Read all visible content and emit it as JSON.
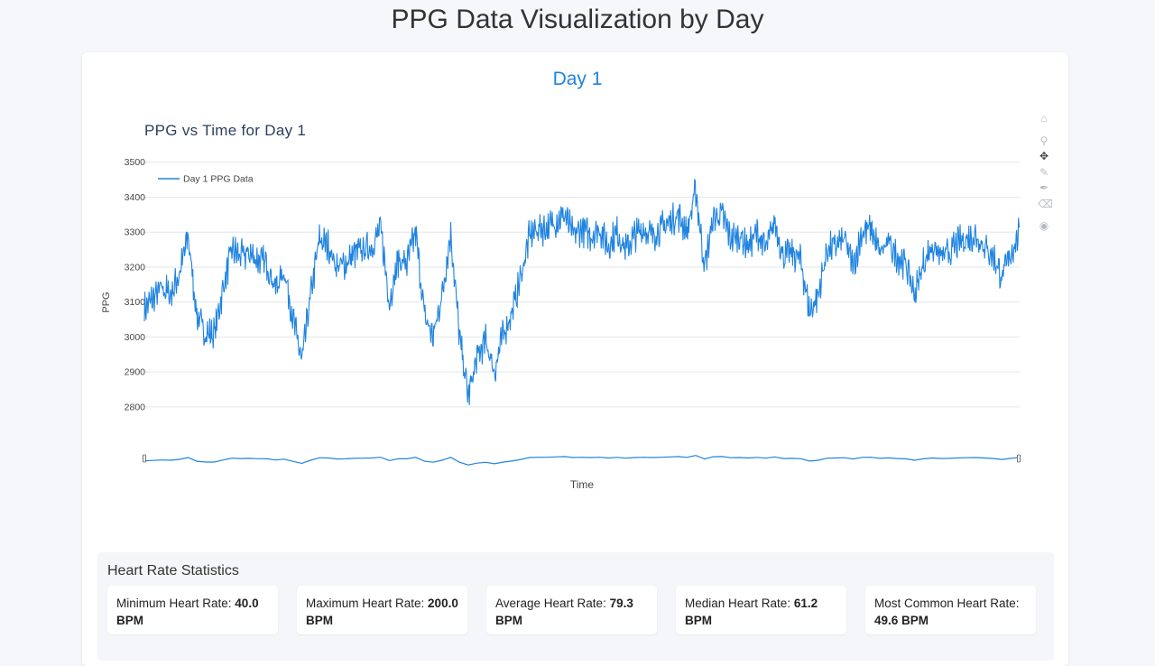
{
  "page": {
    "title": "PPG Data Visualization by Day"
  },
  "day": {
    "title": "Day 1"
  },
  "modebar": {
    "icons": [
      "home-icon",
      "zoom-icon",
      "pan-icon",
      "draw-icon",
      "draw-open-icon",
      "erase-icon",
      "camera-icon"
    ]
  },
  "chart_data": {
    "type": "line",
    "title": "PPG vs Time for Day 1",
    "xlabel": "Time",
    "ylabel": "PPG",
    "ylim": [
      2730,
      3520
    ],
    "yticks": [
      2800,
      2900,
      3000,
      3100,
      3200,
      3300,
      3400,
      3500
    ],
    "grid": true,
    "legend": "top-left",
    "range_slider": true,
    "series": [
      {
        "name": "Day 1 PPG Data",
        "color": "#1f83e0",
        "x": [
          0,
          1,
          2,
          3,
          4,
          5,
          6,
          7,
          8,
          9,
          10,
          11,
          12,
          13,
          14,
          15,
          16,
          17,
          18,
          19,
          20,
          21,
          22,
          23,
          24,
          25,
          26,
          27,
          28,
          29,
          30,
          31,
          32,
          33,
          34,
          35,
          36,
          37,
          38,
          39,
          40,
          41,
          42,
          43,
          44,
          45,
          46,
          47,
          48,
          49,
          50,
          51,
          52,
          53,
          54,
          55,
          56,
          57,
          58,
          59,
          60,
          61,
          62,
          63,
          64,
          65,
          66,
          67,
          68,
          69,
          70,
          71,
          72,
          73,
          74,
          75,
          76,
          77,
          78,
          79,
          80,
          81,
          82,
          83,
          84,
          85,
          86,
          87,
          88,
          89,
          90,
          91,
          92,
          93,
          94,
          95,
          96,
          97,
          98,
          99,
          100
        ],
        "y": [
          3080,
          3110,
          3140,
          3120,
          3180,
          3290,
          3060,
          3010,
          3010,
          3140,
          3250,
          3230,
          3240,
          3220,
          3210,
          3140,
          3190,
          3050,
          2930,
          3120,
          3280,
          3260,
          3200,
          3210,
          3240,
          3250,
          3260,
          3310,
          3100,
          3220,
          3210,
          3300,
          3060,
          3000,
          3120,
          3300,
          3000,
          2830,
          2940,
          2990,
          2900,
          3010,
          3070,
          3170,
          3290,
          3310,
          3310,
          3330,
          3350,
          3290,
          3310,
          3290,
          3310,
          3260,
          3300,
          3250,
          3290,
          3310,
          3290,
          3310,
          3330,
          3350,
          3300,
          3420,
          3200,
          3340,
          3350,
          3280,
          3290,
          3260,
          3300,
          3250,
          3330,
          3230,
          3240,
          3220,
          3070,
          3120,
          3250,
          3260,
          3280,
          3200,
          3300,
          3310,
          3240,
          3270,
          3230,
          3210,
          3120,
          3210,
          3260,
          3230,
          3240,
          3270,
          3280,
          3290,
          3260,
          3230,
          3170,
          3240,
          3300
        ],
        "values_note": ""
      }
    ]
  },
  "stats": {
    "title": "Heart Rate Statistics",
    "items": [
      {
        "label": "Minimum Heart Rate:",
        "value": "40.0 BPM"
      },
      {
        "label": "Maximum Heart Rate:",
        "value": "200.0 BPM"
      },
      {
        "label": "Average Heart Rate:",
        "value": "79.3 BPM"
      },
      {
        "label": "Median Heart Rate:",
        "value": "61.2 BPM"
      },
      {
        "label": "Most Common Heart Rate:",
        "value": "49.6 BPM"
      }
    ]
  }
}
